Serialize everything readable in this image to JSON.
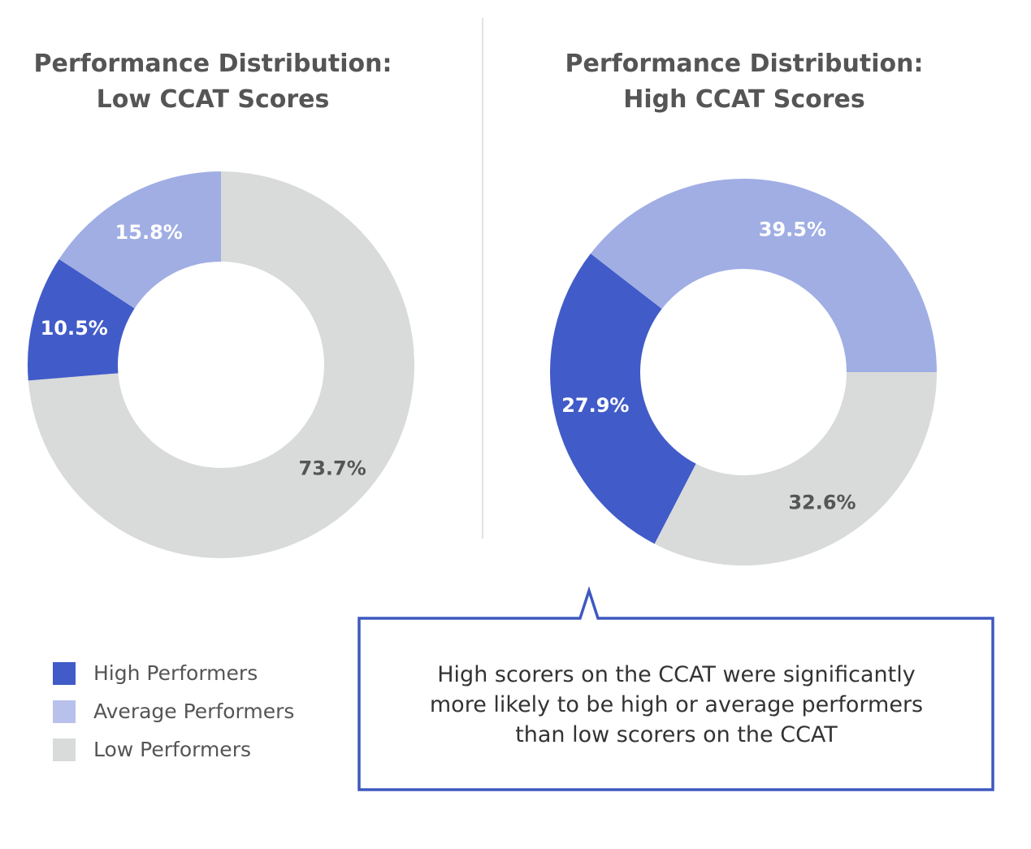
{
  "chart_data": [
    {
      "type": "pie",
      "title": "Performance Distribution:\nLow CCAT Scores",
      "title_lines": [
        "Performance Distribution:",
        "Low CCAT Scores"
      ],
      "donut": true,
      "categories": [
        "Low Performers",
        "High Performers",
        "Average Performers"
      ],
      "values": [
        73.7,
        10.5,
        15.8
      ],
      "labels": [
        "73.7%",
        "10.5%",
        "15.8%"
      ],
      "start_angle_deg": 0
    },
    {
      "type": "pie",
      "title": "Performance Distribution:\nHigh CCAT Scores",
      "title_lines": [
        "Performance Distribution:",
        "High CCAT Scores"
      ],
      "donut": true,
      "categories": [
        "Low Performers",
        "High Performers",
        "Average Performers"
      ],
      "values": [
        32.6,
        27.9,
        39.5
      ],
      "labels": [
        "32.6%",
        "27.9%",
        "39.5%"
      ],
      "start_angle_deg": 90
    }
  ],
  "colors": {
    "High Performers": "#415BC8",
    "Average Performers": "#A0AEE4",
    "Low Performers": "#D9DADA",
    "legend_average": "#B8C1EC",
    "callout_border": "#3F58BF"
  },
  "legend": {
    "placement": "bottom-left",
    "items": [
      "High Performers",
      "Average Performers",
      "Low Performers"
    ]
  },
  "callout": {
    "lines": [
      "High scorers on the CCAT were significantly",
      "more likely to be high or average performers",
      "than low scorers on the CCAT"
    ]
  }
}
